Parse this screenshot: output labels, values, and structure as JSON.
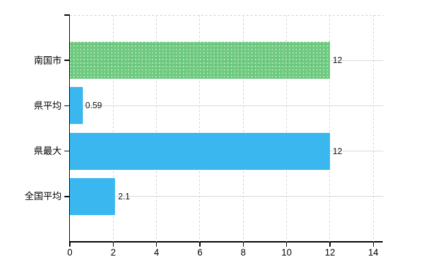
{
  "chart_data": {
    "type": "bar",
    "orientation": "horizontal",
    "title": "",
    "xlabel": "",
    "ylabel": "",
    "categories": [
      "南国市",
      "県平均",
      "県最大",
      "全国平均"
    ],
    "values": [
      12,
      0.59,
      12,
      2.1
    ],
    "value_labels": [
      "12",
      "0.59",
      "12",
      "2.1"
    ],
    "bar_colors": [
      "#6fcb80",
      "#3ab7ee",
      "#3ab7ee",
      "#3ab7ee"
    ],
    "xlim": [
      0,
      14
    ],
    "xticks": [
      0,
      2,
      4,
      6,
      8,
      10,
      12,
      14
    ],
    "grid": "on",
    "legend": "none",
    "background_color": "#ffffff",
    "axis_color": "#000000",
    "gridline_color": "#d9d9d9",
    "accent_green": "#6fcb80",
    "accent_blue": "#3ab7ee"
  }
}
